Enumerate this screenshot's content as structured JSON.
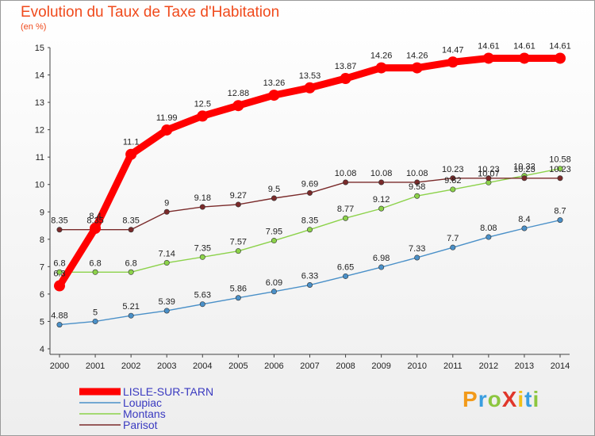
{
  "chart_data": {
    "type": "line",
    "title": "Evolution du Taux de Taxe d'Habitation",
    "subtitle": "(en %)",
    "x": [
      2000,
      2001,
      2002,
      2003,
      2004,
      2005,
      2006,
      2007,
      2008,
      2009,
      2010,
      2011,
      2012,
      2013,
      2014
    ],
    "x_tick_labels": [
      "2000",
      "2001",
      "2002",
      "2003",
      "2004",
      "2005",
      "2006",
      "2007",
      "2008",
      "2009",
      "2010",
      "2011",
      "2012",
      "2013",
      "2014"
    ],
    "ylim": [
      4,
      15
    ],
    "y_ticks": [
      4,
      5,
      6,
      7,
      8,
      9,
      10,
      11,
      12,
      13,
      14,
      15
    ],
    "y_tick_labels": [
      "4",
      "5",
      "6",
      "7",
      "8",
      "9",
      "10",
      "11",
      "12",
      "13",
      "14",
      "15"
    ],
    "grid": false,
    "legend_position": "bottom-left",
    "series": [
      {
        "name": "LISLE-SUR-TARN",
        "color": "#ff0000",
        "values": [
          6.3,
          8.4,
          11.1,
          11.99,
          12.5,
          12.88,
          13.26,
          13.53,
          13.87,
          14.26,
          14.26,
          14.47,
          14.61,
          14.61,
          14.61
        ],
        "labels": [
          "6.3",
          "8.4",
          "11.1",
          "11.99",
          "12.5",
          "12.88",
          "13.26",
          "13.53",
          "13.87",
          "14.26",
          "14.26",
          "14.47",
          "14.61",
          "14.61",
          "14.61"
        ]
      },
      {
        "name": "Loupiac",
        "color": "#4a90c8",
        "values": [
          4.88,
          5,
          5.21,
          5.39,
          5.63,
          5.86,
          6.09,
          6.33,
          6.65,
          6.98,
          7.33,
          7.7,
          8.08,
          8.4,
          8.7
        ],
        "labels": [
          "4.88",
          "5",
          "5.21",
          "5.39",
          "5.63",
          "5.86",
          "6.09",
          "6.33",
          "6.65",
          "6.98",
          "7.33",
          "7.7",
          "8.08",
          "8.4",
          "8.7"
        ]
      },
      {
        "name": "Montans",
        "color": "#8cd24a",
        "values": [
          6.8,
          6.8,
          6.8,
          7.14,
          7.35,
          7.57,
          7.95,
          8.35,
          8.77,
          9.12,
          9.58,
          9.82,
          10.07,
          10.32,
          10.58
        ],
        "labels": [
          "6.8",
          "6.8",
          "6.8",
          "7.14",
          "7.35",
          "7.57",
          "7.95",
          "8.35",
          "8.77",
          "9.12",
          "9.58",
          "9.82",
          "10.07",
          "10.32",
          "10.58"
        ]
      },
      {
        "name": "Parisot",
        "color": "#7a2a2a",
        "values": [
          8.35,
          8.35,
          8.35,
          9,
          9.18,
          9.27,
          9.5,
          9.69,
          10.08,
          10.08,
          10.08,
          10.23,
          10.23,
          10.23,
          10.23
        ],
        "labels": [
          "8.35",
          "8.35",
          "8.35",
          "9",
          "9.18",
          "9.27",
          "9.5",
          "9.69",
          "10.08",
          "10.08",
          "10.08",
          "10.23",
          "10.23",
          "10.23",
          "10.23"
        ]
      }
    ]
  },
  "logo": {
    "text": "ProXiti"
  }
}
